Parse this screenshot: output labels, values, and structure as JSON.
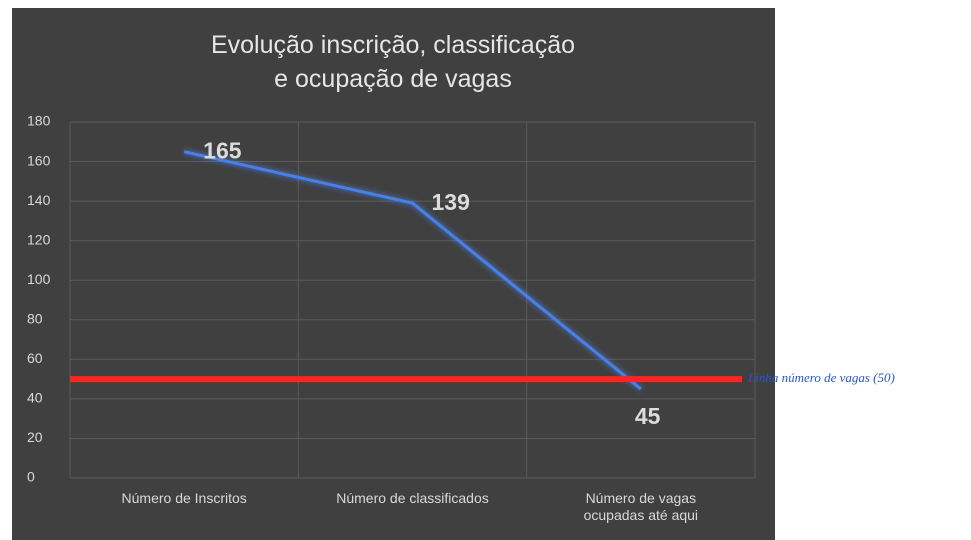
{
  "chart_data": {
    "type": "line",
    "title": "Evolução inscrição, classificação e ocupação de vagas",
    "categories": [
      "Número de Inscritos",
      "Número de classificados",
      "Número de vagas ocupadas até aqui"
    ],
    "values": [
      165,
      139,
      45
    ],
    "color": "#4a80e8",
    "ylim": [
      0,
      180
    ],
    "yticks": [
      0,
      20,
      40,
      60,
      80,
      100,
      120,
      140,
      160,
      180
    ],
    "grid": true,
    "reference_line": {
      "value": 50,
      "label": "Linha número de vagas (50)",
      "color": "#ff2424"
    }
  }
}
